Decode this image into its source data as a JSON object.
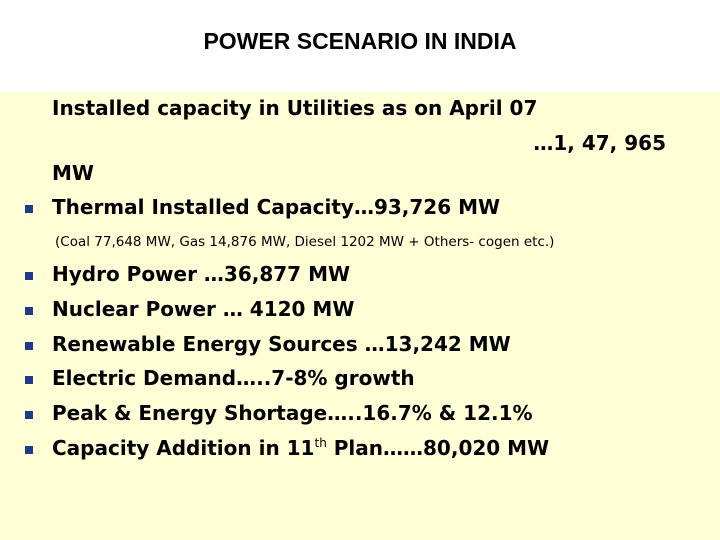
{
  "title": "POWER SCENARIO IN INDIA",
  "installed": {
    "line1": "Installed capacity in Utilities as on April 07",
    "line2": "…1, 47, 965",
    "line3": "MW"
  },
  "thermal": {
    "text": "Thermal Installed Capacity…93,726 MW",
    "note": "(Coal 77,648 MW, Gas 14,876 MW, Diesel 1202 MW + Others- cogen etc.)"
  },
  "bullets": [
    "Hydro Power …36,877 MW",
    "Nuclear Power … 4120 MW",
    "Renewable Energy Sources …13,242 MW",
    "Electric Demand…..7-8% growth",
    "Peak & Energy Shortage…..16.7% & 12.1%"
  ],
  "capacity_addition": {
    "prefix": "Capacity Addition in 11",
    "sup": "th",
    "suffix": " Plan……80,020 MW"
  },
  "colors": {
    "background": "#ffffd6",
    "bullet": "#1c3d8f"
  },
  "bullet_icon": "square-bullet-icon"
}
